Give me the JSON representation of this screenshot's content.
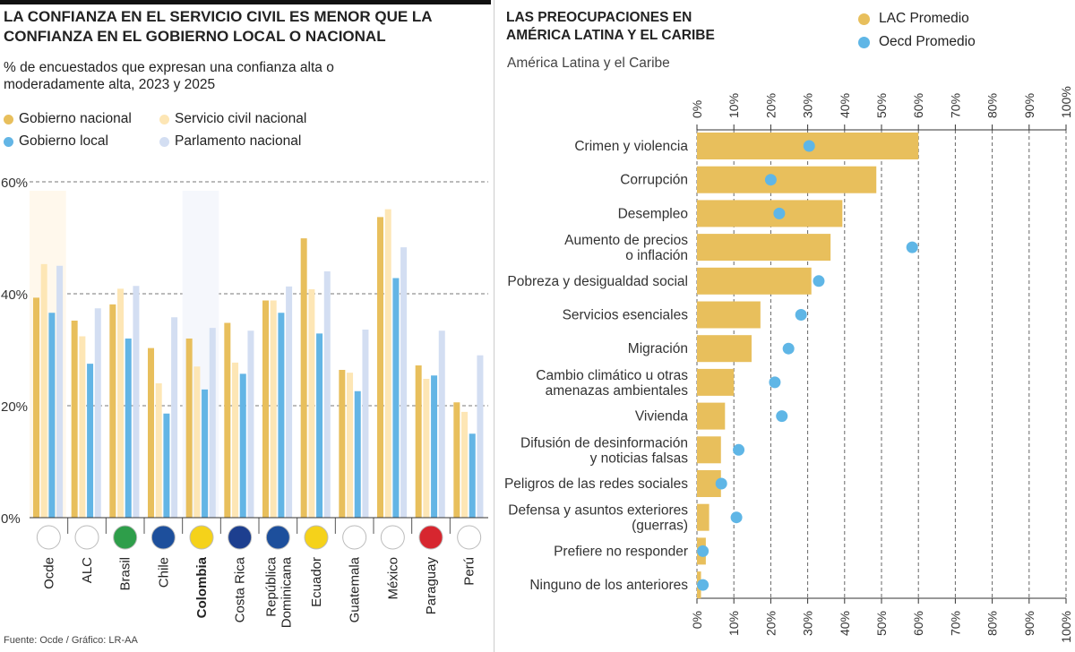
{
  "left": {
    "title": "LA CONFIANZA EN EL SERVICIO CIVIL ES MENOR QUE LA CONFIANZA EN EL GOBIERNO LOCAL O NACIONAL",
    "subtitle": "% de encuestados que expresan una confianza alta o moderadamente alta, 2023 y 2025",
    "source": "Fuente: Ocde / Gráfico: LR-AA"
  },
  "right": {
    "title_line1": "LAS PREOCUPACIONES EN",
    "title_line2": "AMÉRICA LATINA Y EL CARIBE",
    "region": "América Latina y el Caribe"
  },
  "chart_data": [
    {
      "type": "bar",
      "categories": [
        "Ocde",
        "ALC",
        "Brasil",
        "Chile",
        "Colombia",
        "Costa Rica",
        "República Dominicana",
        "Ecuador",
        "Guatemala",
        "México",
        "Paraguay",
        "Perú"
      ],
      "highlighted_category": "Colombia",
      "series": [
        {
          "name": "Gobierno nacional",
          "color": "#e8bf5c",
          "values": [
            39.3,
            35.2,
            38.1,
            30.3,
            32.0,
            34.8,
            38.8,
            49.9,
            26.4,
            53.7,
            27.2,
            20.6
          ]
        },
        {
          "name": "Servicio civil nacional",
          "color": "#fde6b5",
          "values": [
            45.3,
            32.4,
            40.9,
            24.0,
            27.0,
            27.7,
            38.8,
            40.8,
            25.9,
            55.1,
            24.8,
            18.9
          ]
        },
        {
          "name": "Gobierno local",
          "color": "#63b5e5",
          "values": [
            36.6,
            27.5,
            32.0,
            18.6,
            22.9,
            25.7,
            36.6,
            32.9,
            22.6,
            42.8,
            25.4,
            15.0
          ]
        },
        {
          "name": "Parlamento nacional",
          "color": "#d3def2",
          "values": [
            45.0,
            37.4,
            41.4,
            35.8,
            33.9,
            33.4,
            41.3,
            44.0,
            33.6,
            48.3,
            33.4,
            29.0
          ]
        }
      ],
      "yticks": [
        "0%",
        "20%",
        "40%",
        "60%"
      ],
      "ylim": [
        0,
        60
      ],
      "grid": true,
      "legend": "top"
    },
    {
      "type": "bar",
      "orientation": "horizontal",
      "categories": [
        "Crimen y violencia",
        "Corrupción",
        "Desempleo",
        "Aumento de precios\no inflación",
        "Pobreza y desigualdad social",
        "Servicios esenciales",
        "Migración",
        "Cambio climático u otras\namenazas ambientales",
        "Vivienda",
        "Difusión de desinformación\ny noticias falsas",
        "Peligros de las redes sociales",
        "Defensa y asuntos exteriores\n(guerras)",
        "Prefiere no responder",
        "Ninguno de los anteriores"
      ],
      "series": [
        {
          "name": "LAC Promedio",
          "color": "#e8bf5c",
          "values": [
            60,
            48.6,
            39.4,
            36.2,
            31,
            17.2,
            14.8,
            10,
            7.6,
            6.5,
            6.5,
            3.3,
            2.4,
            1.1
          ]
        },
        {
          "name": "Oecd Promedio",
          "color": "#5fb6e6",
          "values": [
            30.4,
            20,
            22.3,
            58.3,
            33,
            28.2,
            24.8,
            21.1,
            23,
            11.3,
            6.6,
            10.7,
            1.6,
            1.6
          ]
        }
      ],
      "xticks": [
        "0%",
        "10%",
        "20%",
        "30%",
        "40%",
        "50%",
        "60%",
        "70%",
        "80%",
        "90%",
        "100%"
      ],
      "xlim": [
        0,
        100
      ],
      "grid": true,
      "legend": "top-right"
    }
  ]
}
